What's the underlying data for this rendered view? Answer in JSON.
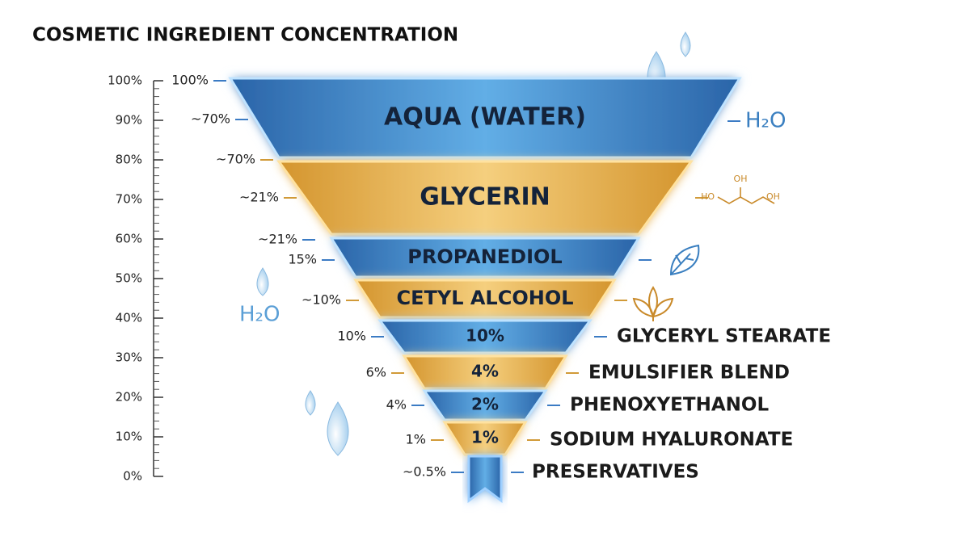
{
  "title": "COSMETIC INGREDIENT CONCENTRATION",
  "axis": {
    "ticks": [
      "100%",
      "90%",
      "80%",
      "70%",
      "60%",
      "50%",
      "40%",
      "30%",
      "20%",
      "10%",
      "0%"
    ]
  },
  "layers": [
    {
      "name": "AQUA (WATER)",
      "left_labels": [
        "100%",
        "~70%"
      ],
      "right_label": "H₂O"
    },
    {
      "name": "GLYCERIN",
      "left_labels": [
        "~70%",
        "~21%"
      ]
    },
    {
      "name": "PROPANEDIOL",
      "left_labels": [
        "~21%",
        "15%"
      ]
    },
    {
      "name": "CETYL ALCOHOL",
      "left_labels": [
        "~10%"
      ]
    },
    {
      "name": "GLYCERYL STEARATE",
      "inner_label": "10%",
      "left_labels": [
        "10%"
      ]
    },
    {
      "name": "EMULSIFIER BLEND",
      "inner_label": "4%",
      "left_labels": [
        "6%"
      ]
    },
    {
      "name": "PHENOXYETHANOL",
      "inner_label": "2%",
      "left_labels": [
        "4%"
      ]
    },
    {
      "name": "SODIUM HYALURONATE",
      "inner_label": "1%",
      "left_labels": [
        "1%"
      ]
    },
    {
      "name": "PRESERVATIVES",
      "left_labels": [
        "~0.5%"
      ]
    }
  ],
  "side_label": "H₂O",
  "molecule": {
    "labels": [
      "OH",
      "HO",
      "OH"
    ]
  }
}
